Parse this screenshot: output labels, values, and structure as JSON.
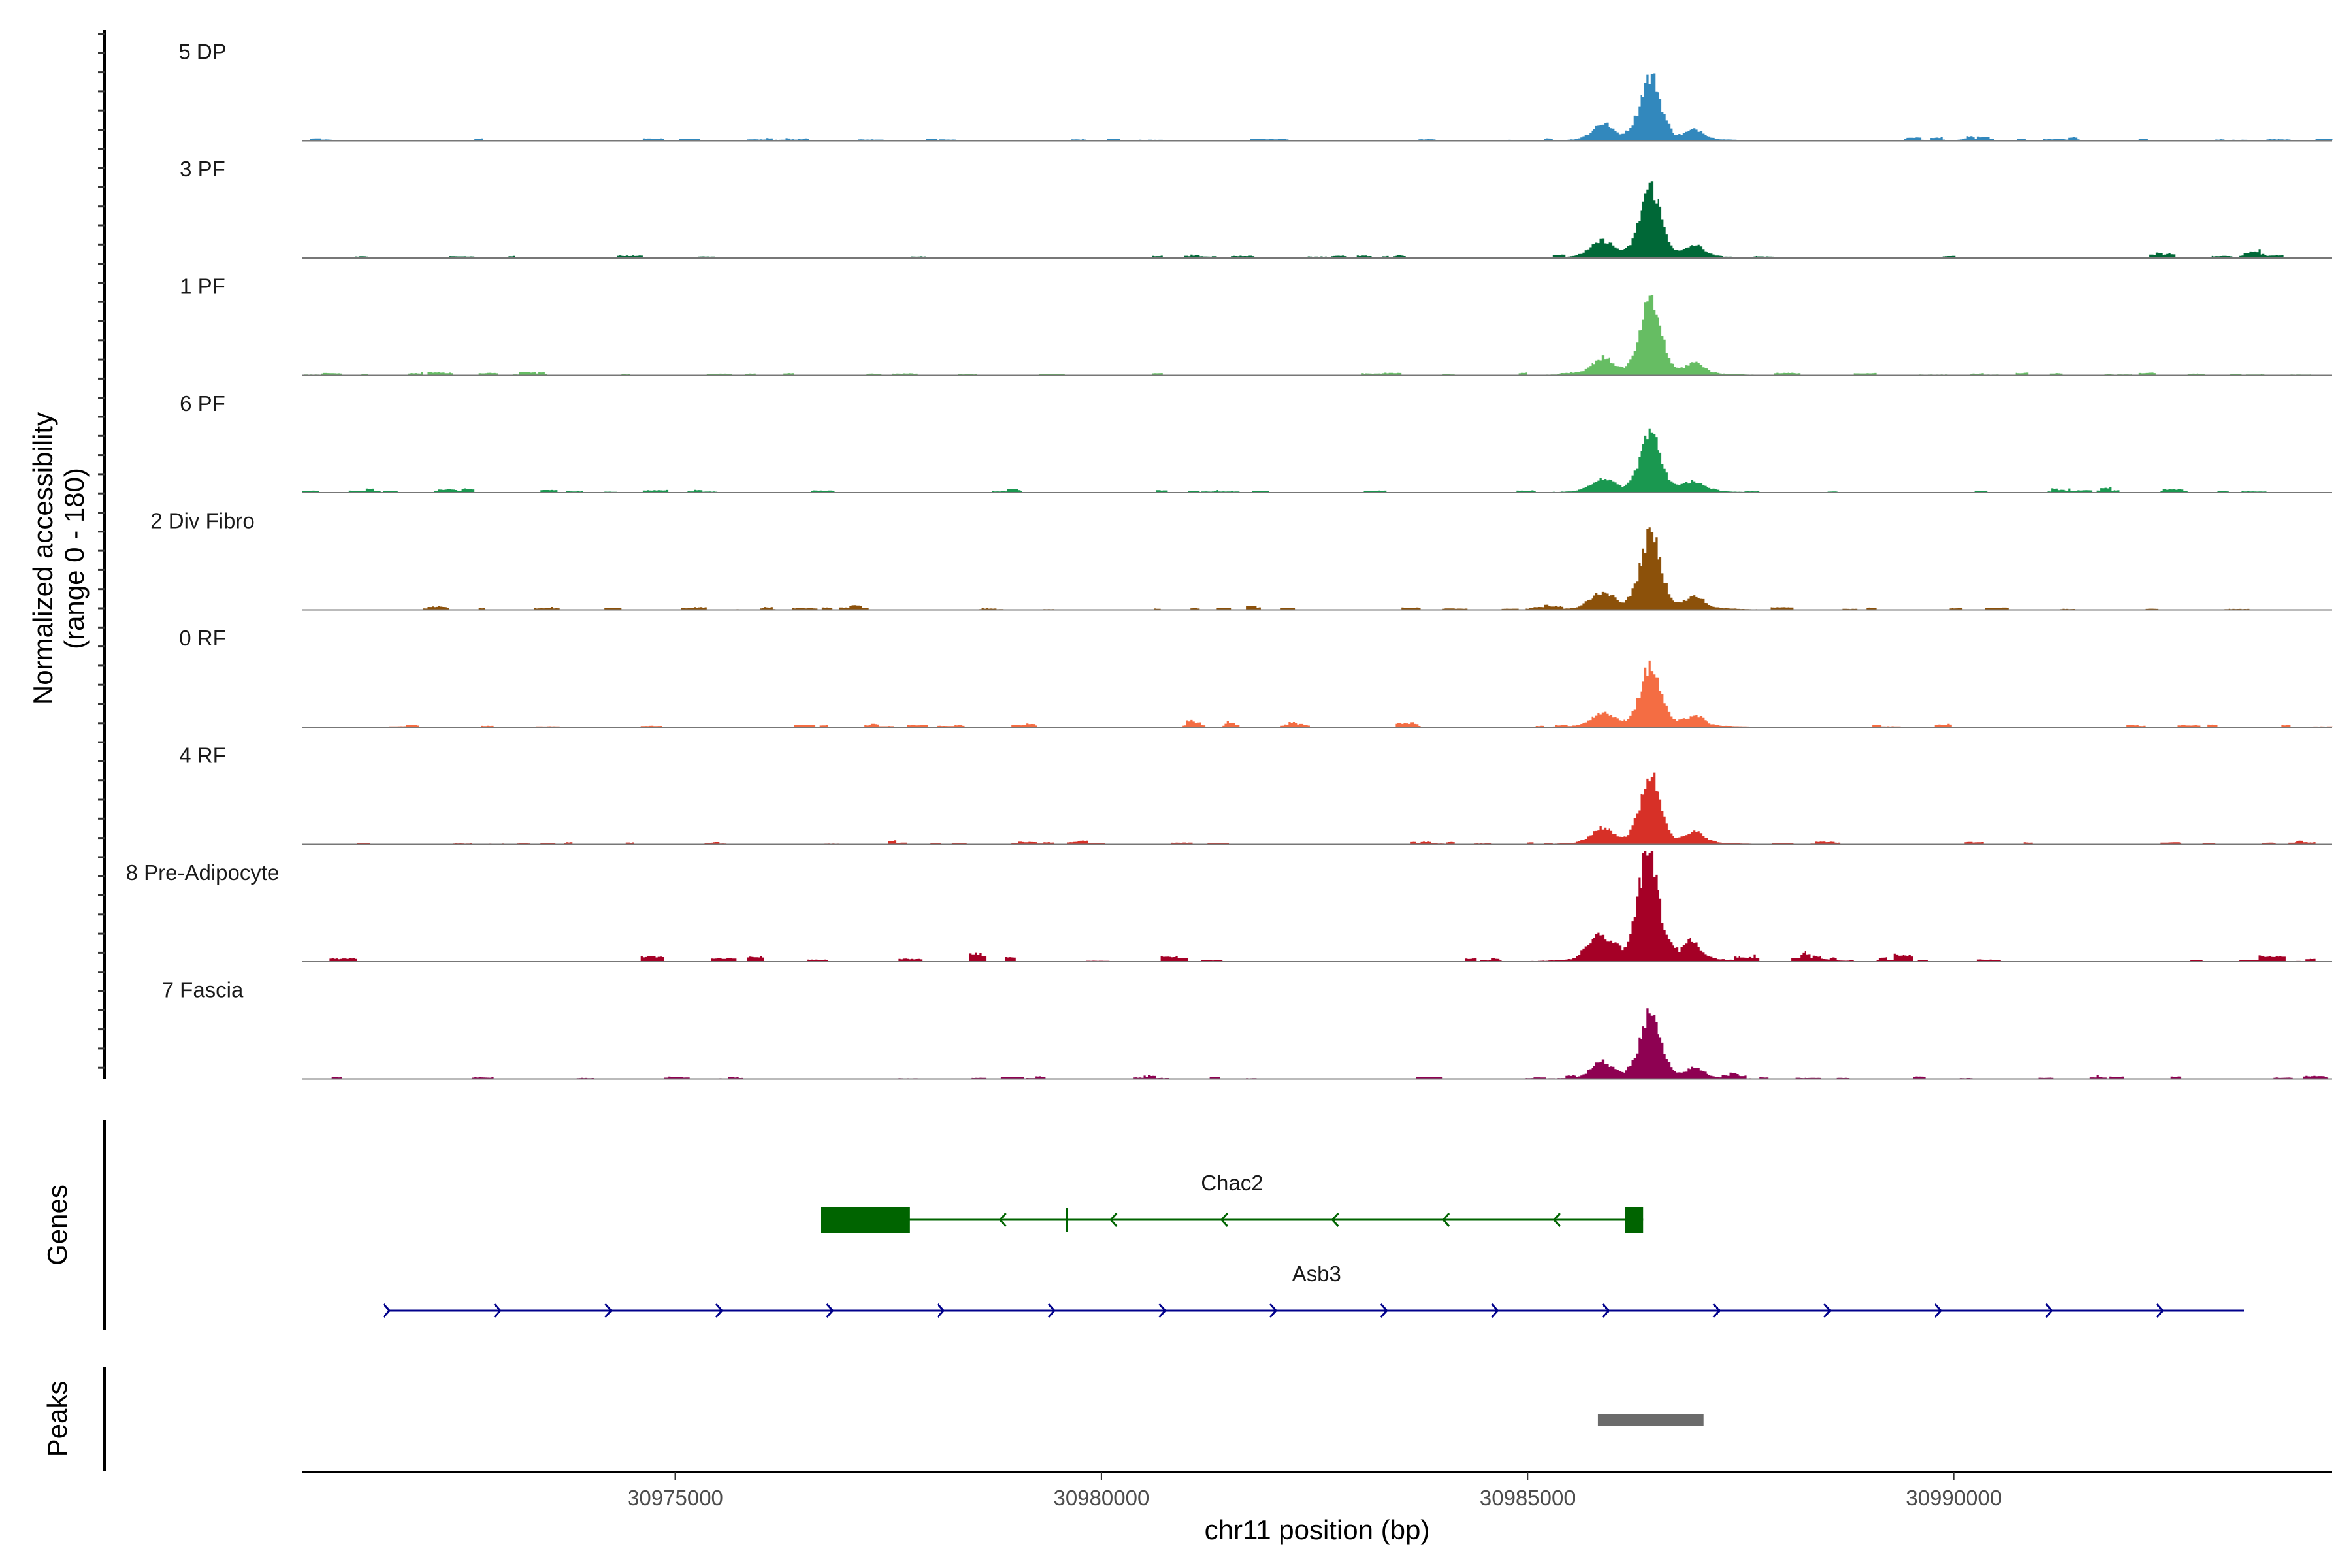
{
  "chart_data": {
    "type": "area",
    "title": "",
    "xlabel": "chr11 position (bp)",
    "ylabel": "Normalized accessibility\n(range 0 - 180)",
    "ylabel_line1": "Normalized accessibility",
    "ylabel_line2": "(range 0 - 180)",
    "ylim": [
      0,
      180
    ],
    "xlim": [
      30970620,
      30994440
    ],
    "x_ticks": [
      30975000,
      30980000,
      30985000,
      30990000
    ],
    "x_tick_labels": [
      "30975000",
      "30980000",
      "30985000",
      "30990000"
    ],
    "tracks": [
      {
        "name": "5 DP",
        "color": "#3288bd",
        "peak_center": 30986430,
        "peak_height": 95
      },
      {
        "name": "3 PF",
        "color": "#006837",
        "peak_center": 30986430,
        "peak_height": 108
      },
      {
        "name": "1 PF",
        "color": "#66bd63",
        "peak_center": 30986430,
        "peak_height": 108
      },
      {
        "name": "6 PF",
        "color": "#1a9850",
        "peak_center": 30986430,
        "peak_height": 90
      },
      {
        "name": "2 Div Fibro",
        "color": "#8c510a",
        "peak_center": 30986430,
        "peak_height": 113
      },
      {
        "name": "0 RF",
        "color": "#f46d43",
        "peak_center": 30986430,
        "peak_height": 90
      },
      {
        "name": "4 RF",
        "color": "#d73027",
        "peak_center": 30986430,
        "peak_height": 103
      },
      {
        "name": "8 Pre-Adipocyte",
        "color": "#a50026",
        "peak_center": 30986400,
        "peak_height": 160
      },
      {
        "name": "7 Fascia",
        "color": "#8e0152",
        "peak_center": 30986430,
        "peak_height": 94
      }
    ],
    "genes_label": "Genes",
    "genes": [
      {
        "name": "Chac2",
        "strand": "-",
        "start": 30976710,
        "end": 30986356,
        "color": "#006400",
        "exons": [
          [
            30976710,
            30977754
          ],
          [
            30979580,
            30979610
          ],
          [
            30986144,
            30986356
          ]
        ]
      },
      {
        "name": "Asb3",
        "strand": "+",
        "start": 30971648,
        "end": 30993401,
        "color": "#00008b",
        "exons": []
      }
    ],
    "peaks_label": "Peaks",
    "peaks": [
      {
        "start": 30985825,
        "end": 30987065,
        "color": "#6b6b6b"
      }
    ]
  }
}
